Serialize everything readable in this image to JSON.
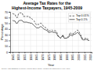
{
  "chart_data": {
    "type": "line",
    "title": "Average Tax Rates for the\nHighest-Income Taxpayers, 1945-2009",
    "x_label": "Year",
    "y_label": "Percentage",
    "annotations": [
      "Source: IRS Statistics of Income, Piketty-Saez (2007), updated at elsa.berkeley.edu/~saez"
    ],
    "x": [
      1945,
      1946,
      1947,
      1948,
      1949,
      1950,
      1951,
      1952,
      1953,
      1954,
      1955,
      1956,
      1957,
      1958,
      1959,
      1960,
      1961,
      1962,
      1963,
      1964,
      1965,
      1966,
      1967,
      1968,
      1969,
      1970,
      1971,
      1972,
      1973,
      1974,
      1975,
      1976,
      1977,
      1978,
      1979,
      1980,
      1981,
      1982,
      1983,
      1984,
      1985,
      1986,
      1987,
      1988,
      1989,
      1990,
      1991,
      1992,
      1993,
      1994,
      1995,
      1996,
      1997,
      1998,
      1999,
      2000,
      2001,
      2002,
      2003,
      2004,
      2005,
      2006,
      2007,
      2008,
      2009
    ],
    "series": [
      {
        "name": "Top 0.01%",
        "color": "#444444",
        "line_style": "dashed",
        "values": [
          67,
          66,
          66,
          60,
          60,
          67,
          68,
          68,
          68,
          62,
          62,
          62,
          62,
          62,
          62,
          58,
          58,
          56,
          54,
          50,
          47,
          48,
          48,
          50,
          50,
          47,
          44,
          43,
          42,
          40,
          36,
          37,
          38,
          38,
          36,
          37,
          37,
          34,
          28,
          27,
          24,
          26,
          30,
          24,
          24,
          24,
          26,
          28,
          34,
          32,
          30,
          34,
          34,
          36,
          38,
          37,
          33,
          29,
          24,
          23,
          23,
          24,
          24,
          22,
          24
        ]
      },
      {
        "name": "Top 0.1%",
        "color": "#444444",
        "line_style": "solid",
        "values": [
          55,
          54,
          54,
          50,
          50,
          54,
          55,
          55,
          55,
          52,
          52,
          52,
          52,
          51,
          51,
          50,
          50,
          48,
          46,
          44,
          42,
          42,
          42,
          44,
          44,
          42,
          40,
          39,
          38,
          37,
          34,
          34,
          35,
          35,
          34,
          34,
          34,
          31,
          27,
          26,
          24,
          26,
          29,
          24,
          24,
          24,
          25,
          26,
          30,
          29,
          28,
          31,
          31,
          32,
          34,
          33,
          30,
          27,
          22,
          21,
          21,
          22,
          22,
          20,
          20
        ]
      }
    ],
    "xlim": [
      1943,
      2011
    ],
    "xticks": [
      1945,
      1950,
      1955,
      1960,
      1965,
      1970,
      1975,
      1980,
      1985,
      1990,
      1995,
      2000,
      2005,
      2010
    ],
    "ylim": [
      0,
      70
    ],
    "yticks": [
      0,
      10,
      20,
      30,
      40,
      50,
      60,
      70
    ],
    "grid": true,
    "legend": "upper right"
  }
}
